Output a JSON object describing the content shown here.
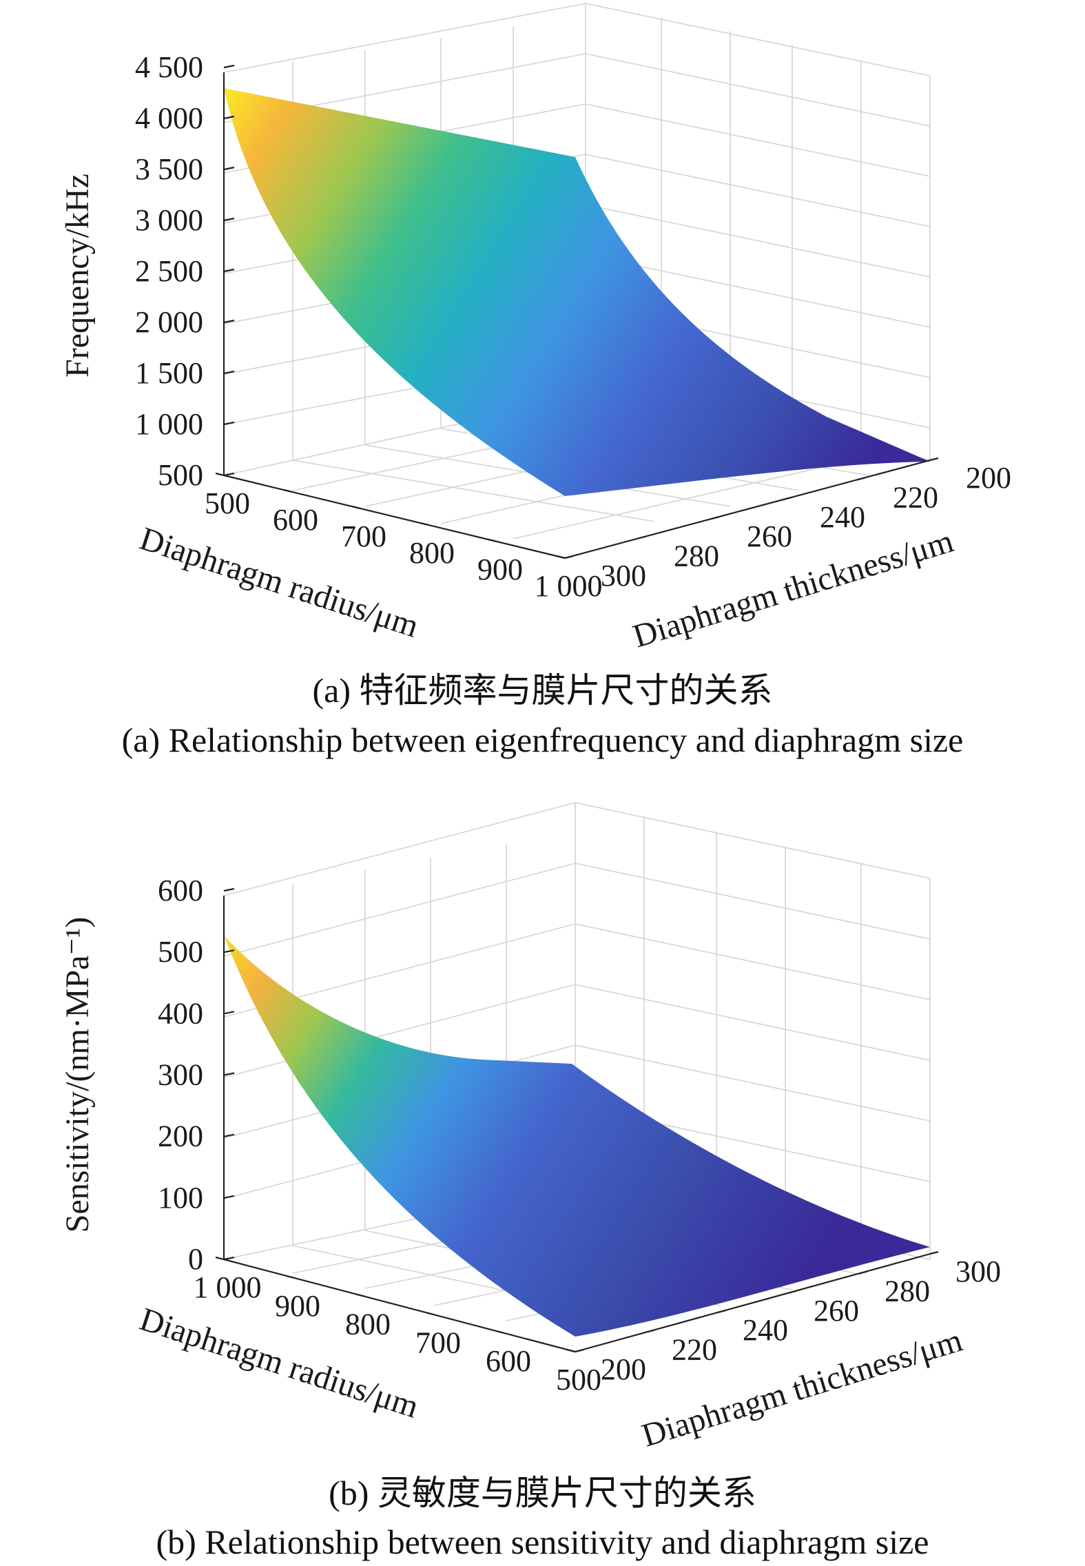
{
  "colors": {
    "colormap": [
      "#3e26a8",
      "#4060dd",
      "#3f90ec",
      "#279dd2",
      "#1bb4b3",
      "#41bf8a",
      "#8bc25d",
      "#cdbc3b",
      "#f7ba3c",
      "#f5dd25",
      "#f9fb0e"
    ]
  },
  "chart_data": [
    {
      "type": "surface",
      "xlabel": "Diaphragm radius/μm",
      "ylabel": "Diaphragm thickness/μm",
      "zlabel": "Frequency/kHz",
      "x_ticks": [
        "500",
        "600",
        "700",
        "800",
        "900",
        "1 000"
      ],
      "y_ticks": [
        "300",
        "280",
        "260",
        "240",
        "220",
        "200"
      ],
      "z_ticks": [
        "500",
        "1 000",
        "1 500",
        "2 000",
        "2 500",
        "3 000",
        "3 500",
        "4 000",
        "4 500"
      ],
      "x": [
        500,
        1000
      ],
      "y": [
        200,
        300
      ],
      "xlim": [
        500,
        1000
      ],
      "ylim": [
        200,
        300
      ],
      "zlim": [
        500,
        4500
      ],
      "corner_values": [
        {
          "radius": 500,
          "thickness": 300,
          "value": 4300
        },
        {
          "radius": 500,
          "thickness": 200,
          "value": 2950
        },
        {
          "radius": 1000,
          "thickness": 300,
          "value": 1050
        },
        {
          "radius": 1000,
          "thickness": 200,
          "value": 720
        }
      ],
      "caption_zh": "(a) 特征频率与膜片尺寸的关系",
      "caption_en": "(a) Relationship between eigenfrequency and diaphragm size"
    },
    {
      "type": "surface",
      "xlabel": "Diaphragm radius/μm",
      "ylabel": "Diaphragm thickness/μm",
      "zlabel": "Sensitivity/(nm·MPa⁻¹)",
      "x_ticks": [
        "1 000",
        "900",
        "800",
        "700",
        "600",
        "500"
      ],
      "y_ticks": [
        "200",
        "220",
        "240",
        "260",
        "280",
        "300"
      ],
      "z_ticks": [
        "0",
        "100",
        "200",
        "300",
        "400",
        "500",
        "600"
      ],
      "x": [
        500,
        1000
      ],
      "y": [
        200,
        300
      ],
      "xlim": [
        500,
        1000
      ],
      "ylim": [
        200,
        300
      ],
      "zlim": [
        0,
        600
      ],
      "corner_values": [
        {
          "radius": 1000,
          "thickness": 200,
          "value": 530
        },
        {
          "radius": 1000,
          "thickness": 300,
          "value": 160
        },
        {
          "radius": 500,
          "thickness": 200,
          "value": 30
        },
        {
          "radius": 500,
          "thickness": 300,
          "value": 10
        }
      ],
      "caption_zh": "(b) 灵敏度与膜片尺寸的关系",
      "caption_en": "(b) Relationship between sensitivity and diaphragm size"
    }
  ]
}
